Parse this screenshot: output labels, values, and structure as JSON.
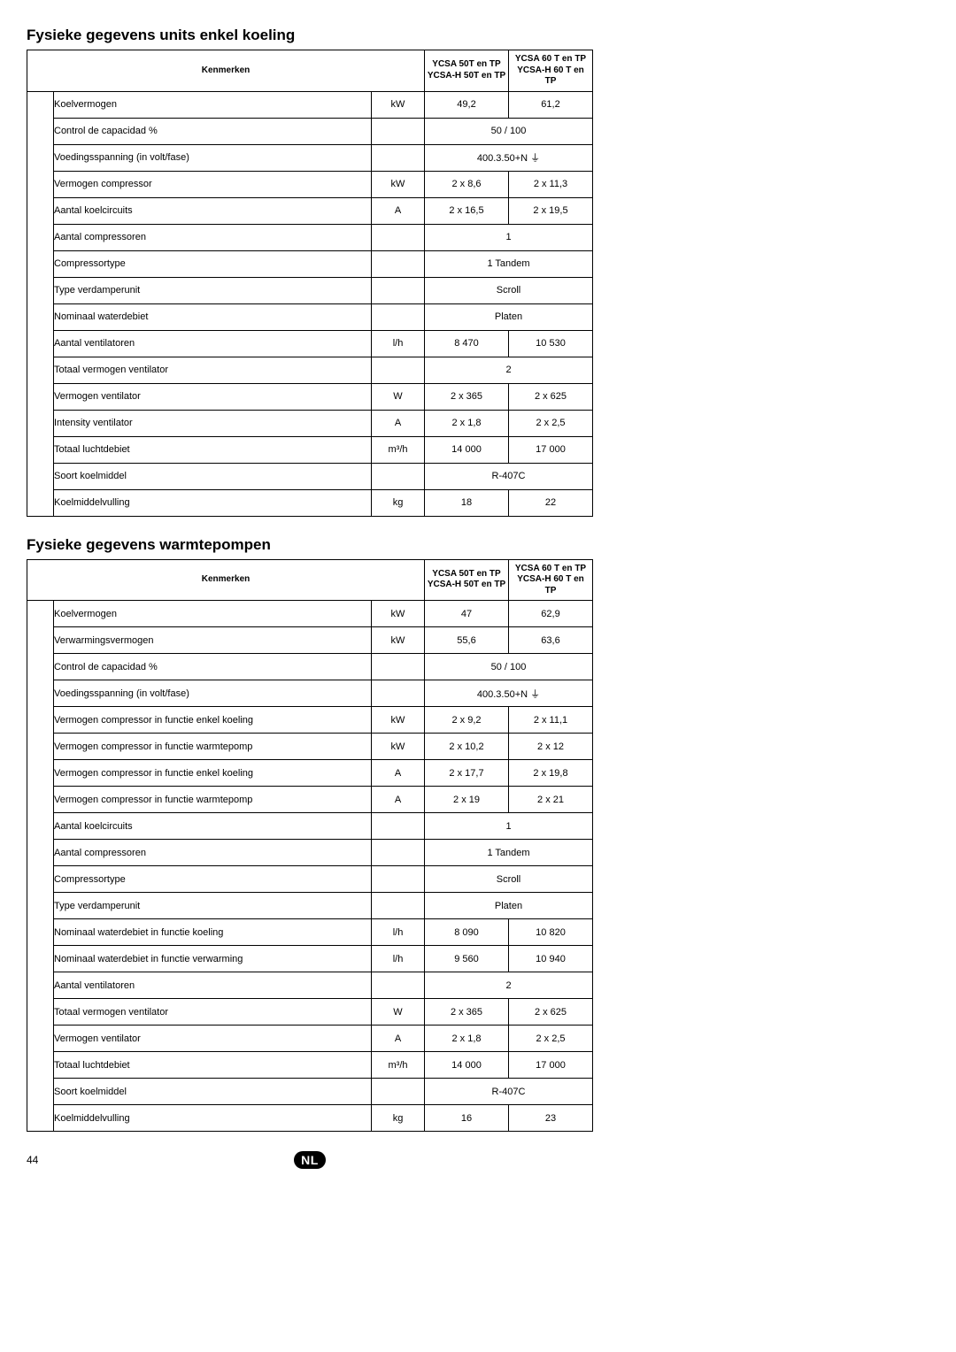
{
  "page_number": "44",
  "nl_badge": "NL",
  "table1": {
    "title": "Fysieke gegevens units enkel koeling",
    "kenmerken_label": "Kenmerken",
    "col1_line1": "YCSA 50T en TP",
    "col1_line2": "YCSA-H 50T en TP",
    "col2_line1": "YCSA 60 T en TP",
    "col2_line2": "YCSA-H 60 T en TP",
    "rows": [
      {
        "label": "Koelvermogen",
        "unit": "kW",
        "v1": "49,2",
        "v2": "61,2",
        "merged": false
      },
      {
        "label": "Control de capacidad %",
        "unit": "",
        "v1": "50 / 100",
        "v2": "",
        "merged": true
      },
      {
        "label": "Voedingsspanning (in volt/fase)",
        "unit": "",
        "v1": "400.3.50+N ⏚",
        "v2": "",
        "merged": true,
        "ground": true
      },
      {
        "label": "Vermogen compressor",
        "unit": "kW",
        "v1": "2 x 8,6",
        "v2": "2 x 11,3",
        "merged": false
      },
      {
        "label": "Aantal koelcircuits",
        "unit": "A",
        "v1": "2 x 16,5",
        "v2": "2 x 19,5",
        "merged": false
      },
      {
        "label": "Aantal compressoren",
        "unit": "",
        "v1": "1",
        "v2": "",
        "merged": true
      },
      {
        "label": "Compressortype",
        "unit": "",
        "v1": "1 Tandem",
        "v2": "",
        "merged": true
      },
      {
        "label": "Type verdamperunit",
        "unit": "",
        "v1": "Scroll",
        "v2": "",
        "merged": true
      },
      {
        "label": "Nominaal waterdebiet",
        "unit": "",
        "v1": "Platen",
        "v2": "",
        "merged": true
      },
      {
        "label": "Aantal ventilatoren",
        "unit": "l/h",
        "v1": "8 470",
        "v2": "10 530",
        "merged": false
      },
      {
        "label": "Totaal vermogen ventilator",
        "unit": "",
        "v1": "2",
        "v2": "",
        "merged": true
      },
      {
        "label": "Vermogen ventilator",
        "unit": "W",
        "v1": "2 x 365",
        "v2": "2 x 625",
        "merged": false
      },
      {
        "label": "Intensity ventilator",
        "unit": "A",
        "v1": "2 x 1,8",
        "v2": "2 x 2,5",
        "merged": false
      },
      {
        "label": "Totaal luchtdebiet",
        "unit": "m³/h",
        "v1": "14 000",
        "v2": "17 000",
        "merged": false
      },
      {
        "label": "Soort koelmiddel",
        "unit": "",
        "v1": "R-407C",
        "v2": "",
        "merged": true
      },
      {
        "label": "Koelmiddelvulling",
        "unit": "kg",
        "v1": "18",
        "v2": "22",
        "merged": false
      }
    ]
  },
  "table2": {
    "title": "Fysieke gegevens warmtepompen",
    "kenmerken_label": "Kenmerken",
    "col1_line1": "YCSA 50T en TP",
    "col1_line2": "YCSA-H 50T en TP",
    "col2_line1": "YCSA 60 T en TP",
    "col2_line2": "YCSA-H 60 T en TP",
    "rows": [
      {
        "label": "Koelvermogen",
        "unit": "kW",
        "v1": "47",
        "v2": "62,9",
        "merged": false
      },
      {
        "label": "Verwarmingsvermogen",
        "unit": "kW",
        "v1": "55,6",
        "v2": "63,6",
        "merged": false
      },
      {
        "label": "Control de capacidad %",
        "unit": "",
        "v1": "50 / 100",
        "v2": "",
        "merged": true
      },
      {
        "label": "Voedingsspanning (in volt/fase)",
        "unit": "",
        "v1": "400.3.50+N ⏚",
        "v2": "",
        "merged": true,
        "ground": true
      },
      {
        "label": "Vermogen compressor in functie enkel koeling",
        "unit": "kW",
        "v1": "2 x 9,2",
        "v2": "2 x 11,1",
        "merged": false
      },
      {
        "label": "Vermogen compressor in functie warmtepomp",
        "unit": "kW",
        "v1": "2 x 10,2",
        "v2": "2 x 12",
        "merged": false
      },
      {
        "label": "Vermogen compressor in functie enkel koeling",
        "unit": "A",
        "v1": "2 x 17,7",
        "v2": "2 x 19,8",
        "merged": false
      },
      {
        "label": "Vermogen compressor in functie warmtepomp",
        "unit": "A",
        "v1": "2 x 19",
        "v2": "2 x 21",
        "merged": false
      },
      {
        "label": "Aantal koelcircuits",
        "unit": "",
        "v1": "1",
        "v2": "",
        "merged": true
      },
      {
        "label": "Aantal compressoren",
        "unit": "",
        "v1": "1 Tandem",
        "v2": "",
        "merged": true
      },
      {
        "label": "Compressortype",
        "unit": "",
        "v1": "Scroll",
        "v2": "",
        "merged": true
      },
      {
        "label": "Type verdamperunit",
        "unit": "",
        "v1": "Platen",
        "v2": "",
        "merged": true
      },
      {
        "label": "Nominaal waterdebiet in functie koeling",
        "unit": "l/h",
        "v1": "8 090",
        "v2": "10 820",
        "merged": false
      },
      {
        "label": "Nominaal waterdebiet in functie verwarming",
        "unit": "l/h",
        "v1": "9 560",
        "v2": "10 940",
        "merged": false
      },
      {
        "label": "Aantal ventilatoren",
        "unit": "",
        "v1": "2",
        "v2": "",
        "merged": true
      },
      {
        "label": "Totaal vermogen ventilator",
        "unit": "W",
        "v1": "2 x 365",
        "v2": "2 x 625",
        "merged": false
      },
      {
        "label": "Vermogen ventilator",
        "unit": "A",
        "v1": "2 x 1,8",
        "v2": "2 x 2,5",
        "merged": false
      },
      {
        "label": "Totaal luchtdebiet",
        "unit": "m³/h",
        "v1": "14 000",
        "v2": "17 000",
        "merged": false
      },
      {
        "label": "Soort koelmiddel",
        "unit": "",
        "v1": "R-407C",
        "v2": "",
        "merged": true
      },
      {
        "label": "Koelmiddelvulling",
        "unit": "kg",
        "v1": "16",
        "v2": "23",
        "merged": false
      }
    ]
  }
}
